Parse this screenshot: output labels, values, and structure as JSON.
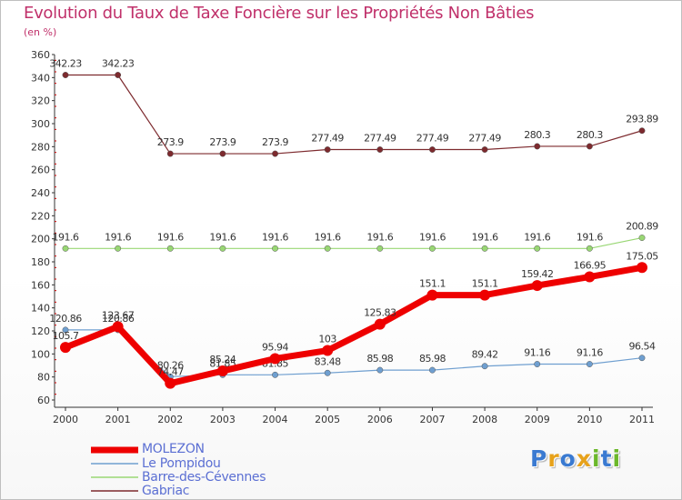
{
  "colors": {
    "title": "#c0306a",
    "axis": "#333333",
    "grid": "#d8d8d8",
    "legend_text": "#5b6fd3",
    "tick": "#cc0000"
  },
  "logo": {
    "text": "Proxiti",
    "letters": [
      "P",
      "r",
      "o",
      "x",
      "i",
      "t",
      "i"
    ],
    "colors": [
      "#3a7ad1",
      "#e7a21b",
      "#3a7ad1",
      "#e7a21b",
      "#6bb82a",
      "#3a7ad1",
      "#6bb82a"
    ]
  },
  "chart_data": {
    "type": "line",
    "title": "Evolution du Taux de Taxe Foncière sur les Propriétés Non Bâties",
    "subtitle": "(en %)",
    "xlabel": "",
    "ylabel": "",
    "categories": [
      "2000",
      "2001",
      "2002",
      "2003",
      "2004",
      "2005",
      "2006",
      "2007",
      "2008",
      "2009",
      "2010",
      "2011"
    ],
    "ylim": [
      60,
      360
    ],
    "yticks": [
      60,
      80,
      100,
      120,
      140,
      160,
      180,
      200,
      220,
      240,
      260,
      280,
      300,
      320,
      340,
      360
    ],
    "grid": false,
    "legend_position": "bottom-left",
    "series": [
      {
        "name": "Gabriac",
        "color": "#7d2a2e",
        "width": 1.2,
        "values": [
          342.23,
          342.23,
          273.9,
          273.9,
          273.9,
          277.49,
          277.49,
          277.49,
          277.49,
          280.3,
          280.3,
          293.89
        ],
        "labels": [
          "342.23",
          "342.23",
          "273.9",
          "273.9",
          "273.9",
          "277.49",
          "277.49",
          "277.49",
          "277.49",
          "280.3",
          "280.3",
          "293.89"
        ]
      },
      {
        "name": "Barre-des-Cévennes",
        "color": "#99d774",
        "width": 1.2,
        "values": [
          191.6,
          191.6,
          191.6,
          191.6,
          191.6,
          191.6,
          191.6,
          191.6,
          191.6,
          191.6,
          191.6,
          200.89
        ],
        "labels": [
          "191.6",
          "191.6",
          "191.6",
          "191.6",
          "191.6",
          "191.6",
          "191.6",
          "191.6",
          "191.6",
          "191.6",
          "191.6",
          "200.89"
        ]
      },
      {
        "name": "Le Pompidou",
        "color": "#6f9fd0",
        "width": 1.2,
        "values": [
          120.86,
          120.86,
          80.26,
          81.85,
          81.85,
          83.48,
          85.98,
          85.98,
          89.42,
          91.16,
          91.16,
          96.54
        ],
        "labels": [
          "120.86",
          "120.86",
          "80.26",
          "81.85",
          "81.85",
          "83.48",
          "85.98",
          "85.98",
          "89.42",
          "91.16",
          "91.16",
          "96.54"
        ]
      },
      {
        "name": "MOLEZON",
        "color": "#ee0000",
        "width": 7,
        "values": [
          105.7,
          123.67,
          74.47,
          85.24,
          95.94,
          103,
          125.83,
          151.1,
          151.1,
          159.42,
          166.95,
          175.05
        ],
        "labels": [
          "105.7",
          "123.67",
          "74.47",
          "85.24",
          "95.94",
          "103",
          "125.83",
          "151.1",
          "151.1",
          "159.42",
          "166.95",
          "175.05"
        ]
      }
    ],
    "legend": [
      "MOLEZON",
      "Le Pompidou",
      "Barre-des-Cévennes",
      "Gabriac"
    ]
  }
}
